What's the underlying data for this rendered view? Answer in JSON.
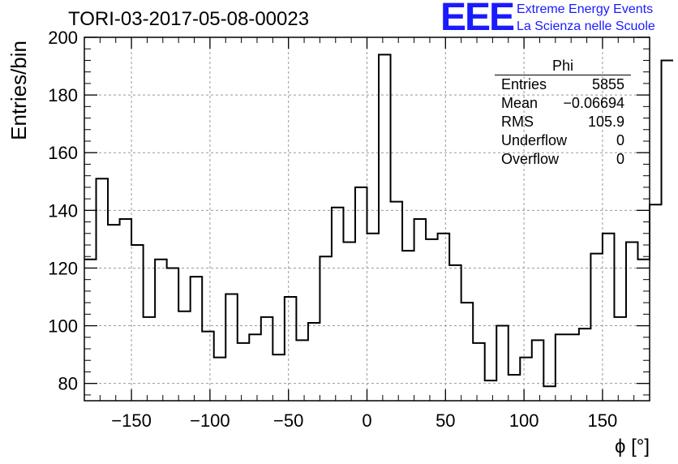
{
  "header": {
    "run_label": "TORI-03-2017-05-08-00023",
    "logo_text": "EEE",
    "logo_line1": "Extreme Energy Events",
    "logo_line2": "La Scienza nelle Scuole"
  },
  "stats": {
    "title": "Phi",
    "rows": [
      {
        "label": "Entries",
        "value": "5855"
      },
      {
        "label": "Mean",
        "value": "−0.06694"
      },
      {
        "label": "RMS",
        "value": "105.9"
      },
      {
        "label": "Underflow",
        "value": "0"
      },
      {
        "label": "Overflow",
        "value": "0"
      }
    ]
  },
  "chart_data": {
    "type": "bar",
    "title": "TORI-03-2017-05-08-00023",
    "xlabel": "ϕ [°]",
    "ylabel": "Entries/bin",
    "xlim": [
      -180,
      180
    ],
    "ylim": [
      74,
      200
    ],
    "xticks": [
      -150,
      -100,
      -50,
      0,
      50,
      100,
      150
    ],
    "yticks": [
      80,
      100,
      120,
      140,
      160,
      180,
      200
    ],
    "grid": true,
    "bin_width": 7.5,
    "bin_edges_start": -180,
    "values": [
      123,
      151,
      135,
      137,
      128,
      103,
      123,
      120,
      105,
      117,
      98,
      89,
      111,
      94,
      97,
      103,
      90,
      110,
      95,
      101,
      124,
      141,
      129,
      148,
      132,
      194,
      143,
      126,
      137,
      130,
      132,
      121,
      108,
      94,
      81,
      100,
      83,
      89,
      95,
      79,
      97,
      97,
      99,
      125,
      132,
      103,
      129,
      123,
      142,
      192
    ]
  }
}
